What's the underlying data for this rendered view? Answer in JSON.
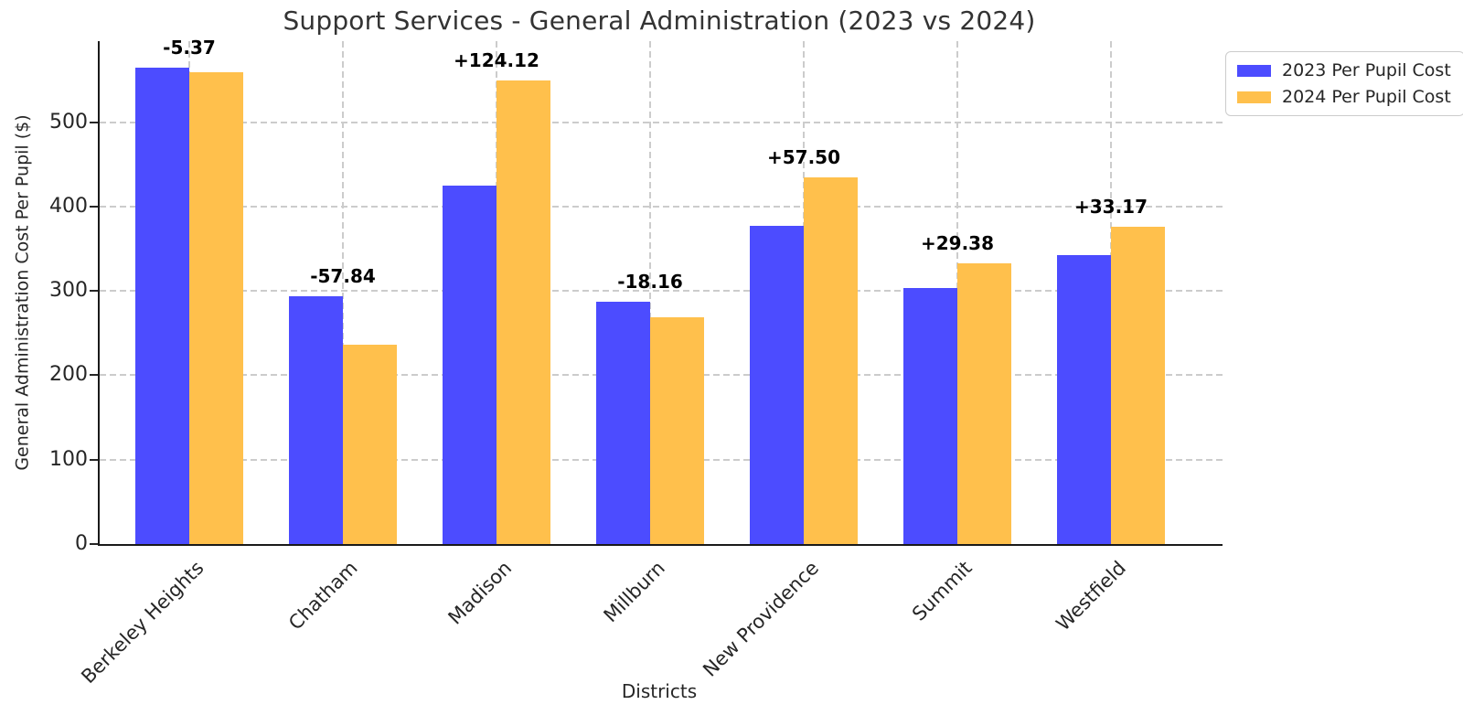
{
  "chart_data": {
    "type": "bar",
    "title": "Support Services - General Administration (2023 vs 2024)",
    "xlabel": "Districts",
    "ylabel": "General Administration Cost Per Pupil ($)",
    "categories": [
      "Berkeley Heights",
      "Chatham",
      "Madison",
      "Millburn",
      "New Providence",
      "Summit",
      "Westfield"
    ],
    "series": [
      {
        "name": "2023 Per Pupil Cost",
        "color": "#4c4cff",
        "values": [
          565.0,
          294.0,
          425.0,
          287.0,
          377.0,
          303.0,
          343.0
        ]
      },
      {
        "name": "2024 Per Pupil Cost",
        "color": "#ffc04c",
        "values": [
          559.63,
          236.16,
          549.12,
          268.84,
          434.5,
          332.38,
          376.17
        ]
      }
    ],
    "diff_labels": [
      "-5.37",
      "-57.84",
      "+124.12",
      "-18.16",
      "+57.50",
      "+29.38",
      "+33.17"
    ],
    "yticks": [
      0,
      100,
      200,
      300,
      400,
      500
    ],
    "ylim": [
      0,
      596
    ],
    "grid": true,
    "grid_style": "dashed",
    "grid_color": "#cccccc",
    "legend_position": "upper right, outside plot",
    "annotation_color": "#000000",
    "title_color": "#333333",
    "axis_color": "#1a1a1a"
  }
}
